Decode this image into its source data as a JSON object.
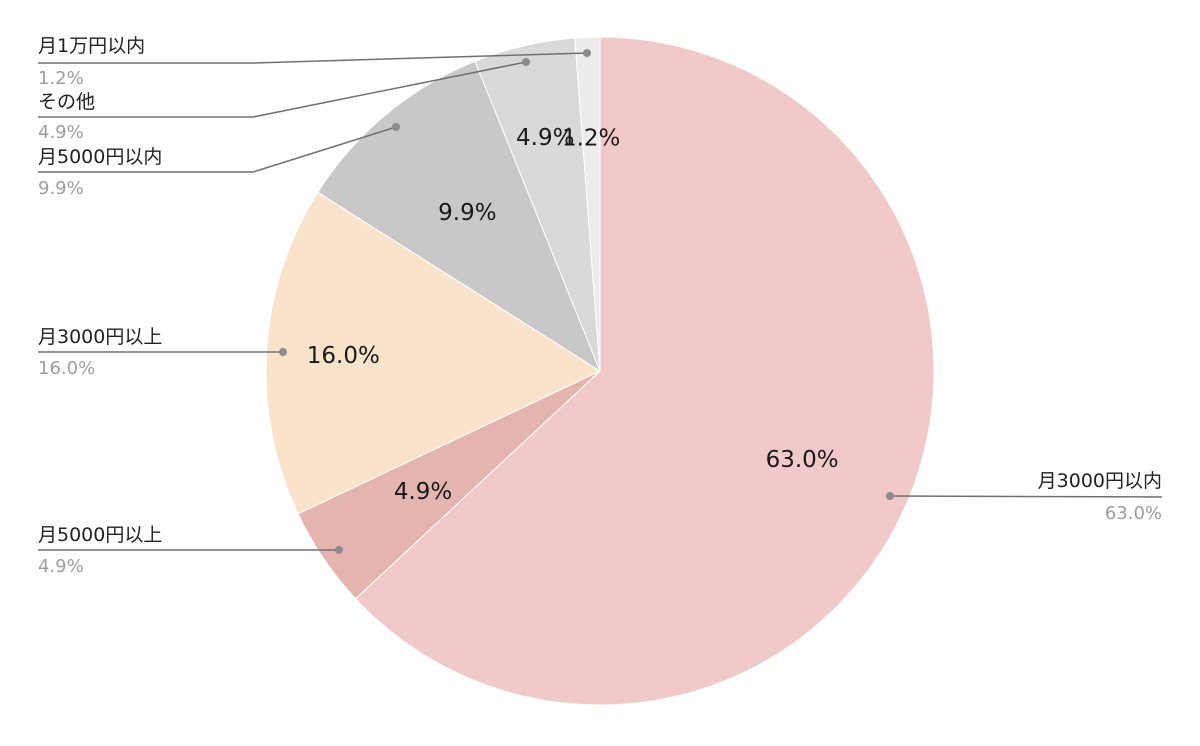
{
  "chart_data": {
    "type": "pie",
    "title": "",
    "start_angle_deg": 0,
    "direction": "clockwise",
    "slices": [
      {
        "label": "月3000円以内",
        "value": 63.0,
        "display": "63.0%",
        "color": "#f2c9c9"
      },
      {
        "label": "月5000円以上",
        "value": 4.9,
        "display": "4.9%",
        "color": "#e4b5ae"
      },
      {
        "label": "月3000円以上",
        "value": 16.0,
        "display": "16.0%",
        "color": "#f9e3cb"
      },
      {
        "label": "月5000円以内",
        "value": 9.9,
        "display": "9.9%",
        "color": "#c8c8c8"
      },
      {
        "label": "その他",
        "value": 4.9,
        "display": "4.9%",
        "color": "#d9d9d9"
      },
      {
        "label": "月1万円以内",
        "value": 1.2,
        "display": "1.2%",
        "color": "#ececec"
      }
    ],
    "legend_placement": "callouts-outside"
  }
}
